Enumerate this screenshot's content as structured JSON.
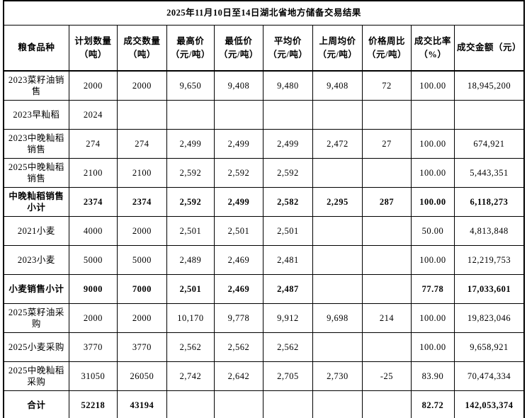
{
  "title": "2025年11月10日至14日湖北省地方储备交易结果",
  "colors": {
    "border": "#000000",
    "text": "#000000",
    "background": "#ffffff",
    "faint_gridline": "#d9d9d9"
  },
  "table": {
    "columns": [
      "粮食品种",
      "计划数量\n（吨）",
      "成交数量\n（吨）",
      "最高价\n（元/吨）",
      "最低价\n（元/吨）",
      "平均价\n（元/吨）",
      "上周均价\n（元/吨）",
      "价格周比\n（元/吨）",
      "成交比率\n（%）",
      "成交金额（元）"
    ],
    "rows": [
      {
        "variety": "2023菜籽油销售",
        "bold": false,
        "cells": [
          "2000",
          "2000",
          "9,650",
          "9,408",
          "9,480",
          "9,408",
          "72",
          "100.00",
          "18,945,200"
        ]
      },
      {
        "variety": "2023早籼稻",
        "bold": false,
        "cells": [
          "2024",
          "",
          "",
          "",
          "",
          "",
          "",
          "",
          ""
        ]
      },
      {
        "variety": "2023中晚籼稻销售",
        "bold": false,
        "cells": [
          "274",
          "274",
          "2,499",
          "2,499",
          "2,499",
          "2,472",
          "27",
          "100.00",
          "674,921"
        ]
      },
      {
        "variety": "2025中晚籼稻销售",
        "bold": false,
        "cells": [
          "2100",
          "2100",
          "2,592",
          "2,592",
          "2,592",
          "",
          "",
          "100.00",
          "5,443,351"
        ]
      },
      {
        "variety": "中晚籼稻销售小计",
        "bold": true,
        "cells": [
          "2374",
          "2374",
          "2,592",
          "2,499",
          "2,582",
          "2,295",
          "287",
          "100.00",
          "6,118,273"
        ]
      },
      {
        "variety": "2021小麦",
        "bold": false,
        "cells": [
          "4000",
          "2000",
          "2,501",
          "2,501",
          "2,501",
          "",
          "",
          "50.00",
          "4,813,848"
        ]
      },
      {
        "variety": "2023小麦",
        "bold": false,
        "cells": [
          "5000",
          "5000",
          "2,489",
          "2,469",
          "2,481",
          "",
          "",
          "100.00",
          "12,219,753"
        ]
      },
      {
        "variety": "小麦销售小计",
        "bold": true,
        "cells": [
          "9000",
          "7000",
          "2,501",
          "2,469",
          "2,487",
          "",
          "",
          "77.78",
          "17,033,601"
        ]
      },
      {
        "variety": "2025菜籽油采购",
        "bold": false,
        "cells": [
          "2000",
          "2000",
          "10,170",
          "9,778",
          "9,912",
          "9,698",
          "214",
          "100.00",
          "19,823,046"
        ]
      },
      {
        "variety": "2025小麦采购",
        "bold": false,
        "cells": [
          "3770",
          "3770",
          "2,562",
          "2,562",
          "2,562",
          "",
          "",
          "100.00",
          "9,658,921"
        ]
      },
      {
        "variety": "2025中晚籼稻采购",
        "bold": false,
        "cells": [
          "31050",
          "26050",
          "2,742",
          "2,642",
          "2,705",
          "2,730",
          "-25",
          "83.90",
          "70,474,334"
        ]
      },
      {
        "variety": "合计",
        "bold": true,
        "cells": [
          "52218",
          "43194",
          "",
          "",
          "",
          "",
          "",
          "82.72",
          "142,053,374"
        ]
      }
    ]
  }
}
